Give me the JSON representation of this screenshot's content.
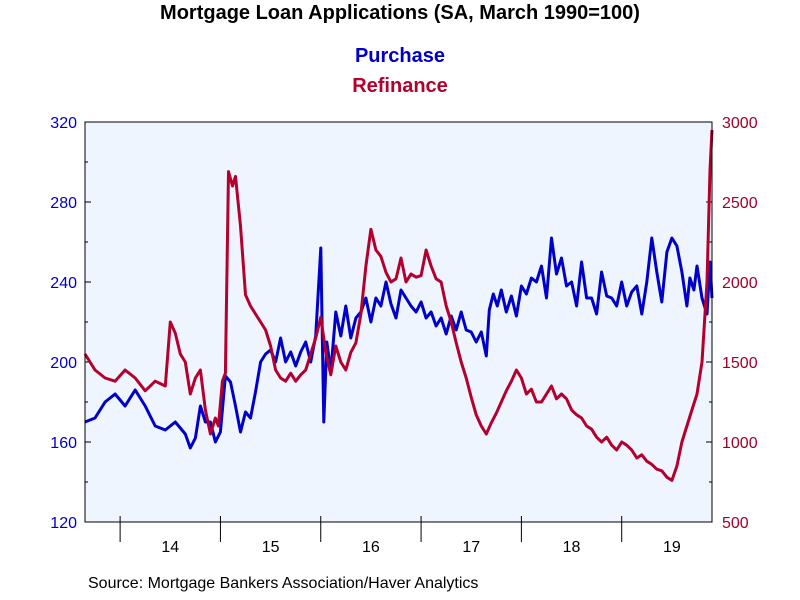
{
  "chart_data": {
    "type": "line",
    "title": "Mortgage Loan Applications (SA, March 1990=100)",
    "source": "Source:  Mortgage Bankers Association/Haver Analytics",
    "x_range": [
      2013.65,
      2019.9
    ],
    "x_tick_labels": [
      {
        "year": 2014,
        "label": "14"
      },
      {
        "year": 2015,
        "label": "15"
      },
      {
        "year": 2016,
        "label": "16"
      },
      {
        "year": 2017,
        "label": "17"
      },
      {
        "year": 2018,
        "label": "18"
      },
      {
        "year": 2019,
        "label": "19"
      }
    ],
    "y_left": {
      "range": [
        120,
        320
      ],
      "ticks": [
        "120",
        "160",
        "200",
        "240",
        "280",
        "320"
      ],
      "color": "#0000c0"
    },
    "y_right": {
      "range": [
        500,
        3000
      ],
      "ticks": [
        "500",
        "1000",
        "1500",
        "2000",
        "2500",
        "3000"
      ],
      "color": "#a0002a"
    },
    "grid": false,
    "legend_placement": "top-center",
    "series": [
      {
        "name": "Purchase",
        "axis": "left",
        "color": "#0000c8",
        "points": [
          [
            2013.65,
            170
          ],
          [
            2013.75,
            172
          ],
          [
            2013.85,
            180
          ],
          [
            2013.95,
            184
          ],
          [
            2014.05,
            178
          ],
          [
            2014.15,
            186
          ],
          [
            2014.25,
            178
          ],
          [
            2014.35,
            168
          ],
          [
            2014.45,
            166
          ],
          [
            2014.55,
            170
          ],
          [
            2014.65,
            164
          ],
          [
            2014.7,
            157
          ],
          [
            2014.75,
            162
          ],
          [
            2014.8,
            178
          ],
          [
            2014.85,
            170
          ],
          [
            2014.9,
            170
          ],
          [
            2014.95,
            160
          ],
          [
            2015.0,
            165
          ],
          [
            2015.05,
            193
          ],
          [
            2015.1,
            190
          ],
          [
            2015.15,
            178
          ],
          [
            2015.2,
            165
          ],
          [
            2015.25,
            175
          ],
          [
            2015.3,
            172
          ],
          [
            2015.35,
            185
          ],
          [
            2015.4,
            200
          ],
          [
            2015.45,
            204
          ],
          [
            2015.5,
            206
          ],
          [
            2015.55,
            200
          ],
          [
            2015.6,
            212
          ],
          [
            2015.65,
            200
          ],
          [
            2015.7,
            205
          ],
          [
            2015.75,
            198
          ],
          [
            2015.8,
            205
          ],
          [
            2015.85,
            210
          ],
          [
            2015.9,
            200
          ],
          [
            2015.95,
            213
          ],
          [
            2016.0,
            257
          ],
          [
            2016.03,
            170
          ],
          [
            2016.06,
            210
          ],
          [
            2016.1,
            195
          ],
          [
            2016.15,
            225
          ],
          [
            2016.2,
            213
          ],
          [
            2016.25,
            228
          ],
          [
            2016.3,
            212
          ],
          [
            2016.35,
            222
          ],
          [
            2016.4,
            225
          ],
          [
            2016.45,
            232
          ],
          [
            2016.5,
            220
          ],
          [
            2016.55,
            232
          ],
          [
            2016.6,
            228
          ],
          [
            2016.65,
            240
          ],
          [
            2016.7,
            229
          ],
          [
            2016.75,
            222
          ],
          [
            2016.8,
            236
          ],
          [
            2016.85,
            232
          ],
          [
            2016.9,
            228
          ],
          [
            2016.95,
            225
          ],
          [
            2017.0,
            230
          ],
          [
            2017.05,
            222
          ],
          [
            2017.1,
            225
          ],
          [
            2017.15,
            218
          ],
          [
            2017.2,
            222
          ],
          [
            2017.25,
            214
          ],
          [
            2017.3,
            223
          ],
          [
            2017.35,
            216
          ],
          [
            2017.4,
            225
          ],
          [
            2017.45,
            216
          ],
          [
            2017.5,
            215
          ],
          [
            2017.55,
            210
          ],
          [
            2017.6,
            215
          ],
          [
            2017.65,
            203
          ],
          [
            2017.68,
            226
          ],
          [
            2017.72,
            234
          ],
          [
            2017.76,
            228
          ],
          [
            2017.8,
            236
          ],
          [
            2017.85,
            225
          ],
          [
            2017.9,
            233
          ],
          [
            2017.95,
            223
          ],
          [
            2018.0,
            238
          ],
          [
            2018.05,
            234
          ],
          [
            2018.1,
            242
          ],
          [
            2018.15,
            240
          ],
          [
            2018.2,
            248
          ],
          [
            2018.25,
            232
          ],
          [
            2018.3,
            262
          ],
          [
            2018.35,
            244
          ],
          [
            2018.4,
            252
          ],
          [
            2018.45,
            238
          ],
          [
            2018.5,
            240
          ],
          [
            2018.55,
            228
          ],
          [
            2018.6,
            250
          ],
          [
            2018.65,
            232
          ],
          [
            2018.7,
            232
          ],
          [
            2018.75,
            224
          ],
          [
            2018.8,
            245
          ],
          [
            2018.85,
            233
          ],
          [
            2018.9,
            232
          ],
          [
            2018.95,
            228
          ],
          [
            2019.0,
            240
          ],
          [
            2019.05,
            228
          ],
          [
            2019.1,
            235
          ],
          [
            2019.15,
            238
          ],
          [
            2019.2,
            224
          ],
          [
            2019.25,
            240
          ],
          [
            2019.3,
            262
          ],
          [
            2019.35,
            245
          ],
          [
            2019.4,
            230
          ],
          [
            2019.45,
            255
          ],
          [
            2019.5,
            262
          ],
          [
            2019.55,
            258
          ],
          [
            2019.6,
            245
          ],
          [
            2019.65,
            228
          ],
          [
            2019.68,
            242
          ],
          [
            2019.72,
            236
          ],
          [
            2019.75,
            248
          ],
          [
            2019.8,
            232
          ],
          [
            2019.85,
            224
          ],
          [
            2019.88,
            250
          ],
          [
            2019.9,
            232
          ]
        ]
      },
      {
        "name": "Refinance",
        "axis": "right",
        "color": "#b4002d",
        "points": [
          [
            2013.65,
            1550
          ],
          [
            2013.75,
            1450
          ],
          [
            2013.85,
            1400
          ],
          [
            2013.95,
            1380
          ],
          [
            2014.05,
            1450
          ],
          [
            2014.15,
            1400
          ],
          [
            2014.25,
            1320
          ],
          [
            2014.35,
            1380
          ],
          [
            2014.45,
            1350
          ],
          [
            2014.5,
            1750
          ],
          [
            2014.55,
            1680
          ],
          [
            2014.6,
            1550
          ],
          [
            2014.65,
            1500
          ],
          [
            2014.7,
            1300
          ],
          [
            2014.75,
            1400
          ],
          [
            2014.8,
            1450
          ],
          [
            2014.85,
            1200
          ],
          [
            2014.9,
            1050
          ],
          [
            2014.95,
            1150
          ],
          [
            2014.98,
            1100
          ],
          [
            2015.02,
            1380
          ],
          [
            2015.05,
            1430
          ],
          [
            2015.08,
            2690
          ],
          [
            2015.12,
            2600
          ],
          [
            2015.15,
            2660
          ],
          [
            2015.2,
            2350
          ],
          [
            2015.25,
            1920
          ],
          [
            2015.3,
            1850
          ],
          [
            2015.35,
            1800
          ],
          [
            2015.4,
            1750
          ],
          [
            2015.45,
            1700
          ],
          [
            2015.5,
            1600
          ],
          [
            2015.55,
            1450
          ],
          [
            2015.6,
            1400
          ],
          [
            2015.65,
            1380
          ],
          [
            2015.7,
            1430
          ],
          [
            2015.75,
            1380
          ],
          [
            2015.8,
            1420
          ],
          [
            2015.85,
            1450
          ],
          [
            2015.9,
            1550
          ],
          [
            2015.95,
            1650
          ],
          [
            2016.0,
            1780
          ],
          [
            2016.05,
            1560
          ],
          [
            2016.1,
            1420
          ],
          [
            2016.15,
            1600
          ],
          [
            2016.2,
            1500
          ],
          [
            2016.25,
            1450
          ],
          [
            2016.3,
            1560
          ],
          [
            2016.35,
            1620
          ],
          [
            2016.4,
            1800
          ],
          [
            2016.45,
            2100
          ],
          [
            2016.5,
            2330
          ],
          [
            2016.55,
            2200
          ],
          [
            2016.6,
            2160
          ],
          [
            2016.65,
            2060
          ],
          [
            2016.7,
            2000
          ],
          [
            2016.75,
            2020
          ],
          [
            2016.8,
            2150
          ],
          [
            2016.85,
            2000
          ],
          [
            2016.9,
            2050
          ],
          [
            2016.95,
            2030
          ],
          [
            2017.0,
            2040
          ],
          [
            2017.05,
            2200
          ],
          [
            2017.1,
            2100
          ],
          [
            2017.15,
            2020
          ],
          [
            2017.2,
            2000
          ],
          [
            2017.25,
            1850
          ],
          [
            2017.3,
            1750
          ],
          [
            2017.35,
            1620
          ],
          [
            2017.4,
            1500
          ],
          [
            2017.45,
            1400
          ],
          [
            2017.5,
            1280
          ],
          [
            2017.55,
            1170
          ],
          [
            2017.6,
            1100
          ],
          [
            2017.65,
            1050
          ],
          [
            2017.7,
            1120
          ],
          [
            2017.75,
            1180
          ],
          [
            2017.8,
            1250
          ],
          [
            2017.85,
            1320
          ],
          [
            2017.9,
            1380
          ],
          [
            2017.95,
            1450
          ],
          [
            2018.0,
            1400
          ],
          [
            2018.05,
            1300
          ],
          [
            2018.1,
            1330
          ],
          [
            2018.15,
            1250
          ],
          [
            2018.2,
            1250
          ],
          [
            2018.25,
            1300
          ],
          [
            2018.3,
            1350
          ],
          [
            2018.35,
            1270
          ],
          [
            2018.4,
            1300
          ],
          [
            2018.45,
            1270
          ],
          [
            2018.5,
            1200
          ],
          [
            2018.55,
            1170
          ],
          [
            2018.6,
            1150
          ],
          [
            2018.65,
            1100
          ],
          [
            2018.7,
            1080
          ],
          [
            2018.75,
            1030
          ],
          [
            2018.8,
            1000
          ],
          [
            2018.85,
            1030
          ],
          [
            2018.9,
            980
          ],
          [
            2018.95,
            950
          ],
          [
            2019.0,
            1000
          ],
          [
            2019.05,
            980
          ],
          [
            2019.1,
            950
          ],
          [
            2019.15,
            900
          ],
          [
            2019.2,
            920
          ],
          [
            2019.25,
            880
          ],
          [
            2019.3,
            860
          ],
          [
            2019.35,
            830
          ],
          [
            2019.4,
            820
          ],
          [
            2019.45,
            780
          ],
          [
            2019.5,
            760
          ],
          [
            2019.55,
            850
          ],
          [
            2019.6,
            1000
          ],
          [
            2019.65,
            1100
          ],
          [
            2019.7,
            1200
          ],
          [
            2019.75,
            1300
          ],
          [
            2019.8,
            1500
          ],
          [
            2019.82,
            1700
          ],
          [
            2019.85,
            2000
          ],
          [
            2019.88,
            2700
          ],
          [
            2019.9,
            2950
          ]
        ]
      }
    ]
  }
}
